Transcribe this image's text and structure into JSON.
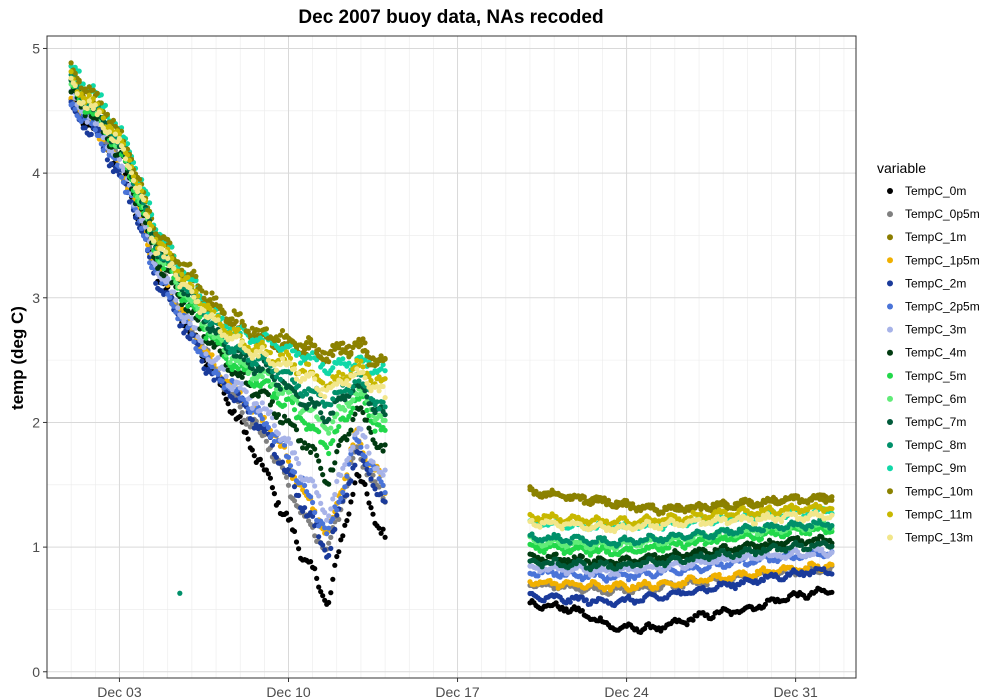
{
  "chart_data": {
    "type": "scatter",
    "title": "Dec 2007 buoy data, NAs recoded",
    "xlabel": "",
    "ylabel": "temp (deg C)",
    "x_axis": {
      "type": "date",
      "min": "2007-11-30T00:00",
      "max": "2008-01-02T12:00"
    },
    "ylim": [
      -0.05,
      5.1
    ],
    "x_ticks": [
      {
        "date": "2007-12-03",
        "label": "Dec 03"
      },
      {
        "date": "2007-12-10",
        "label": "Dec 10"
      },
      {
        "date": "2007-12-17",
        "label": "Dec 17"
      },
      {
        "date": "2007-12-24",
        "label": "Dec 24"
      },
      {
        "date": "2007-12-31",
        "label": "Dec 31"
      }
    ],
    "y_ticks": [
      0,
      1,
      2,
      3,
      4,
      5
    ],
    "grid": true,
    "legend": {
      "title": "variable",
      "position": "right"
    },
    "segments": [
      {
        "start": "2007-12-01T00:00",
        "end": "2007-12-14T00:00"
      },
      {
        "start": "2007-12-20T00:00",
        "end": "2008-01-01T12:00"
      }
    ],
    "series": [
      {
        "name": "TempC_0m",
        "color": "#000000",
        "values": [
          4.55,
          4.3,
          3.9,
          3.2,
          2.8,
          2.4,
          1.95,
          1.5,
          1.0,
          0.55,
          1.6,
          1.05,
          0.55,
          0.5,
          0.35,
          0.35,
          0.45,
          0.5,
          0.6,
          0.65
        ]
      },
      {
        "name": "TempC_0p5m",
        "color": "#808080",
        "values": [
          4.6,
          4.35,
          3.95,
          3.25,
          2.85,
          2.45,
          2.1,
          1.8,
          1.3,
          0.95,
          1.8,
          1.35,
          0.7,
          0.68,
          0.65,
          0.68,
          0.72,
          0.76,
          0.8,
          0.82
        ]
      },
      {
        "name": "TempC_1m",
        "color": "#8b7d00",
        "values": [
          4.8,
          4.45,
          4.1,
          3.5,
          3.2,
          2.9,
          2.75,
          2.65,
          2.6,
          2.55,
          2.65,
          2.45,
          1.45,
          1.4,
          1.35,
          1.3,
          1.32,
          1.35,
          1.38,
          1.4
        ]
      },
      {
        "name": "TempC_1p5m",
        "color": "#f0b000",
        "values": [
          4.58,
          4.33,
          3.92,
          3.22,
          2.83,
          2.45,
          2.2,
          1.95,
          1.5,
          1.1,
          1.9,
          1.45,
          0.72,
          0.7,
          0.68,
          0.7,
          0.74,
          0.78,
          0.82,
          0.85
        ]
      },
      {
        "name": "TempC_2m",
        "color": "#1a3a9a",
        "values": [
          4.52,
          4.28,
          3.85,
          3.15,
          2.75,
          2.35,
          2.15,
          1.85,
          1.4,
          0.95,
          1.75,
          1.35,
          0.6,
          0.58,
          0.56,
          0.6,
          0.66,
          0.72,
          0.78,
          0.82
        ]
      },
      {
        "name": "TempC_2p5m",
        "color": "#4a74d8",
        "values": [
          4.56,
          4.31,
          3.88,
          3.18,
          2.78,
          2.4,
          2.2,
          1.95,
          1.55,
          1.1,
          1.85,
          1.45,
          0.8,
          0.78,
          0.76,
          0.8,
          0.84,
          0.88,
          0.92,
          0.95
        ]
      },
      {
        "name": "TempC_3m",
        "color": "#a7b3e8",
        "values": [
          4.6,
          4.36,
          3.95,
          3.25,
          2.85,
          2.48,
          2.25,
          2.05,
          1.65,
          1.25,
          1.95,
          1.55,
          0.84,
          0.82,
          0.8,
          0.84,
          0.88,
          0.91,
          0.94,
          0.96
        ]
      },
      {
        "name": "TempC_4m",
        "color": "#003a10",
        "values": [
          4.65,
          4.4,
          4.0,
          3.3,
          2.95,
          2.6,
          2.35,
          2.15,
          1.9,
          1.55,
          2.1,
          1.75,
          0.92,
          0.9,
          0.88,
          0.92,
          0.96,
          1.0,
          1.04,
          1.06
        ]
      },
      {
        "name": "TempC_5m",
        "color": "#22d84a",
        "values": [
          4.68,
          4.43,
          4.05,
          3.35,
          3.0,
          2.65,
          2.4,
          2.25,
          2.05,
          1.8,
          2.2,
          1.9,
          1.0,
          0.98,
          0.96,
          1.0,
          1.04,
          1.08,
          1.12,
          1.14
        ]
      },
      {
        "name": "TempC_6m",
        "color": "#60ec78",
        "values": [
          4.7,
          4.45,
          4.08,
          3.38,
          3.05,
          2.7,
          2.45,
          2.35,
          2.15,
          1.95,
          2.25,
          2.0,
          1.05,
          1.03,
          1.01,
          1.05,
          1.09,
          1.13,
          1.16,
          1.18
        ]
      },
      {
        "name": "TempC_7m",
        "color": "#005a3a",
        "values": [
          4.72,
          4.46,
          4.1,
          3.4,
          3.08,
          2.73,
          2.5,
          2.4,
          2.2,
          2.05,
          2.3,
          2.05,
          0.88,
          0.86,
          0.85,
          0.88,
          0.92,
          0.96,
          1.0,
          1.02
        ]
      },
      {
        "name": "TempC_8m",
        "color": "#00906a",
        "values": [
          4.74,
          4.48,
          4.12,
          3.42,
          3.1,
          2.76,
          2.55,
          2.45,
          2.3,
          2.15,
          2.35,
          2.1,
          1.08,
          1.06,
          1.04,
          1.07,
          1.1,
          1.14,
          1.17,
          1.19
        ]
      },
      {
        "name": "TempC_9m",
        "color": "#10d8a8",
        "values": [
          4.85,
          4.6,
          4.22,
          3.55,
          3.2,
          2.85,
          2.7,
          2.65,
          2.55,
          2.45,
          2.5,
          2.4,
          1.2,
          1.18,
          1.16,
          1.18,
          1.21,
          1.24,
          1.27,
          1.29
        ]
      },
      {
        "name": "TempC_10m",
        "color": "#8b8200",
        "values": [
          4.82,
          4.58,
          4.2,
          3.5,
          3.25,
          2.95,
          2.8,
          2.7,
          2.65,
          2.55,
          2.6,
          2.45,
          1.45,
          1.4,
          1.35,
          1.3,
          1.32,
          1.35,
          1.38,
          1.4
        ]
      },
      {
        "name": "TempC_11m",
        "color": "#c8b800",
        "values": [
          4.75,
          4.5,
          4.15,
          3.45,
          3.15,
          2.85,
          2.65,
          2.55,
          2.45,
          2.3,
          2.45,
          2.3,
          1.25,
          1.22,
          1.2,
          1.22,
          1.25,
          1.28,
          1.3,
          1.32
        ]
      },
      {
        "name": "TempC_13m",
        "color": "#f2e68a",
        "values": [
          4.7,
          4.45,
          4.1,
          3.4,
          3.1,
          2.8,
          2.6,
          2.5,
          2.4,
          2.25,
          2.4,
          2.2,
          1.2,
          1.18,
          1.15,
          1.18,
          1.2,
          1.22,
          1.24,
          1.26
        ]
      }
    ],
    "outliers": [
      {
        "series": "TempC_8m",
        "date": "2007-12-05T12:00",
        "value": 0.63
      }
    ]
  }
}
